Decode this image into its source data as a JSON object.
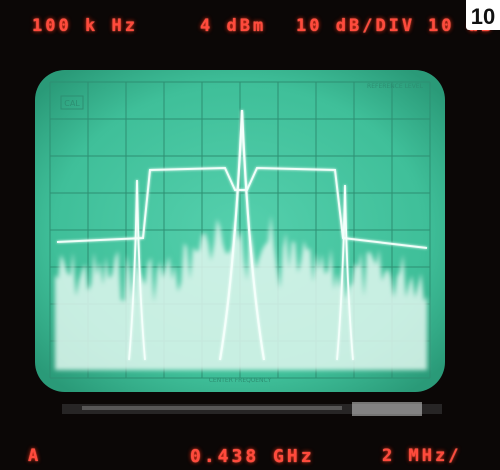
{
  "figure_number": "10",
  "readouts": {
    "top_res_bw_value": "100",
    "top_res_bw_unit_k": "k",
    "top_res_bw_unit_hz": "Hz",
    "top_ref_value": "4",
    "top_ref_unit": "dBm",
    "top_atten_value": "10",
    "top_atten_unit": "dB/DIV",
    "top_right_value": "10",
    "top_right_unit": "dB",
    "bottom_mode": "A",
    "bottom_center_freq": "0.438",
    "bottom_center_unit": "GHz",
    "bottom_span_value": "2",
    "bottom_span_unit": "MHz/"
  },
  "screen": {
    "crt_label": "CAL",
    "brand_label": "REFERENCE LEVEL",
    "center_label": "CENTER FREQUENCY",
    "phosphor_color": "#4ec9a6",
    "led_color": "#ff4a3c"
  }
}
